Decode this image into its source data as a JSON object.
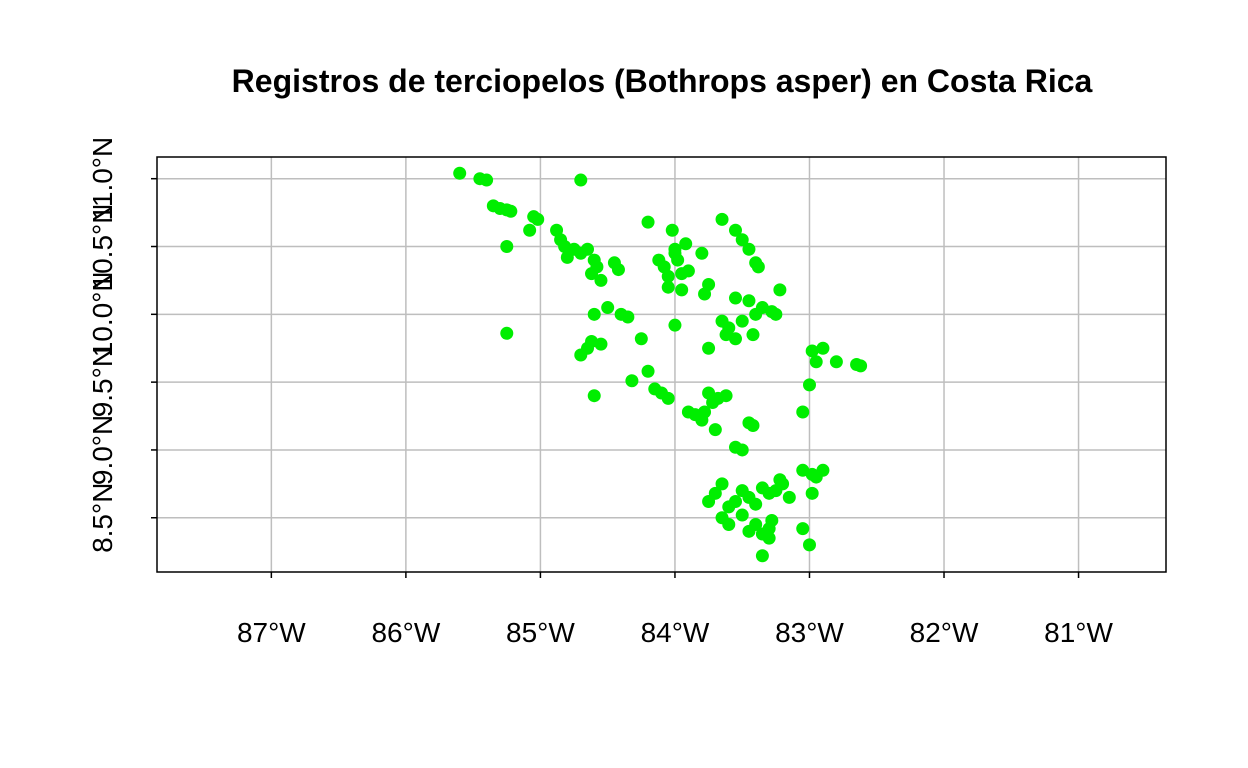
{
  "chart_data": {
    "type": "scatter",
    "title": "Registros de terciopelos (Bothrops asper) en Costa Rica",
    "xlabel": "",
    "ylabel": "",
    "xlim": [
      -87.85,
      -80.35
    ],
    "ylim": [
      8.1,
      11.16
    ],
    "x_ticks": [
      -87,
      -86,
      -85,
      -84,
      -83,
      -82,
      -81
    ],
    "x_tick_labels": [
      "87°W",
      "86°W",
      "85°W",
      "84°W",
      "83°W",
      "82°W",
      "81°W"
    ],
    "y_ticks": [
      8.5,
      9.0,
      9.5,
      10.0,
      10.5,
      11.0
    ],
    "y_tick_labels": [
      "8.5°N",
      "9.0°N",
      "9.5°N",
      "10.0°N",
      "10.5°N",
      "11.0°N"
    ],
    "grid": true,
    "point_color": "#00ee00",
    "series": [
      {
        "x": [
          -85.6,
          -85.45,
          -85.4,
          -85.35,
          -85.3,
          -85.25,
          -85.22,
          -85.25,
          -85.25,
          -85.05,
          -85.02,
          -85.08,
          -84.7,
          -84.88,
          -84.85,
          -84.82,
          -84.75,
          -84.7,
          -84.65,
          -84.6,
          -84.58,
          -84.62,
          -84.8,
          -84.55,
          -84.45,
          -84.42,
          -84.2,
          -84.12,
          -84.08,
          -84.02,
          -84.0,
          -83.98,
          -83.95,
          -84.05,
          -83.92,
          -83.9,
          -83.95,
          -84.05,
          -84.0,
          -83.8,
          -83.75,
          -83.78,
          -83.65,
          -83.55,
          -83.5,
          -83.45,
          -83.4,
          -83.38,
          -83.55,
          -83.45,
          -83.35,
          -83.28,
          -83.25,
          -83.22,
          -83.65,
          -83.6,
          -83.62,
          -83.55,
          -83.5,
          -83.42,
          -83.4,
          -83.75,
          -84.5,
          -84.4,
          -84.35,
          -84.62,
          -84.65,
          -84.7,
          -84.55,
          -84.6,
          -84.25,
          -84.2,
          -84.15,
          -84.1,
          -84.05,
          -84.0,
          -84.32,
          -84.6,
          -83.9,
          -83.85,
          -83.8,
          -83.78,
          -83.7,
          -83.68,
          -83.62,
          -83.75,
          -83.72,
          -83.55,
          -83.5,
          -83.42,
          -83.45,
          -82.98,
          -82.9,
          -82.95,
          -82.8,
          -82.65,
          -82.62,
          -83.0,
          -83.05,
          -83.05,
          -82.98,
          -82.95,
          -82.9,
          -82.98,
          -83.75,
          -83.7,
          -83.65,
          -83.6,
          -83.55,
          -83.5,
          -83.45,
          -83.4,
          -83.35,
          -83.3,
          -83.25,
          -83.2,
          -83.15,
          -83.65,
          -83.6,
          -83.5,
          -83.45,
          -83.4,
          -83.35,
          -83.3,
          -83.28,
          -83.35,
          -83.3,
          -83.05,
          -83.0,
          -83.22
        ],
        "y": [
          11.04,
          11.0,
          10.99,
          10.8,
          10.78,
          10.77,
          10.76,
          10.5,
          9.86,
          10.72,
          10.7,
          10.62,
          10.99,
          10.62,
          10.55,
          10.5,
          10.48,
          10.45,
          10.48,
          10.4,
          10.35,
          10.3,
          10.42,
          10.25,
          10.38,
          10.33,
          10.68,
          10.4,
          10.35,
          10.62,
          10.45,
          10.4,
          10.3,
          10.28,
          10.52,
          10.32,
          10.18,
          10.2,
          10.48,
          10.45,
          10.22,
          10.15,
          10.7,
          10.62,
          10.55,
          10.48,
          10.38,
          10.35,
          10.12,
          10.1,
          10.05,
          10.02,
          10.0,
          10.18,
          9.95,
          9.9,
          9.85,
          9.82,
          9.95,
          9.85,
          10.0,
          9.75,
          10.05,
          10.0,
          9.98,
          9.8,
          9.75,
          9.7,
          9.78,
          10.0,
          9.82,
          9.58,
          9.45,
          9.42,
          9.38,
          9.92,
          9.51,
          9.4,
          9.28,
          9.26,
          9.22,
          9.28,
          9.15,
          9.38,
          9.4,
          9.42,
          9.35,
          9.02,
          9.0,
          9.18,
          9.2,
          9.73,
          9.75,
          9.65,
          9.65,
          9.63,
          9.62,
          9.48,
          9.28,
          8.85,
          8.82,
          8.8,
          8.85,
          8.68,
          8.62,
          8.68,
          8.75,
          8.58,
          8.62,
          8.7,
          8.65,
          8.6,
          8.72,
          8.68,
          8.7,
          8.75,
          8.65,
          8.5,
          8.45,
          8.52,
          8.4,
          8.45,
          8.38,
          8.35,
          8.48,
          8.22,
          8.42,
          8.42,
          8.3,
          8.78
        ]
      }
    ]
  }
}
